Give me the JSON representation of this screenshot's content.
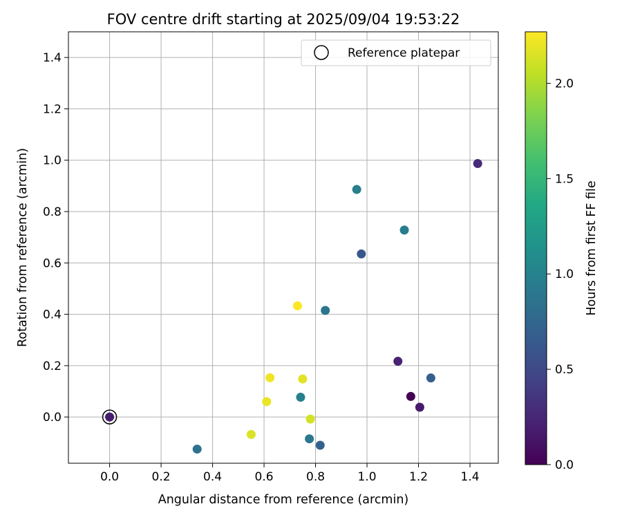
{
  "chart_data": {
    "type": "scatter",
    "title": "FOV centre drift starting at 2025/09/04 19:53:22",
    "xlabel": "Angular distance from reference (arcmin)",
    "ylabel": "Rotation from reference (arcmin)",
    "xlim": [
      -0.16,
      1.51
    ],
    "ylim": [
      -0.18,
      1.5
    ],
    "xticks": [
      0.0,
      0.2,
      0.4,
      0.6,
      0.8,
      1.0,
      1.2,
      1.4
    ],
    "xtick_labels": [
      "0.0",
      "0.2",
      "0.4",
      "0.6",
      "0.8",
      "1.0",
      "1.2",
      "1.4"
    ],
    "yticks": [
      0.0,
      0.2,
      0.4,
      0.6,
      0.8,
      1.0,
      1.2,
      1.4
    ],
    "ytick_labels": [
      "0.0",
      "0.2",
      "0.4",
      "0.6",
      "0.8",
      "1.0",
      "1.2",
      "1.4"
    ],
    "grid": true,
    "legend": {
      "position": "top-right",
      "entries": [
        {
          "label": "Reference platepar",
          "marker": "open-circle"
        }
      ]
    },
    "colorbar": {
      "label": "Hours from first FF file",
      "colormap": "viridis",
      "range": [
        0.0,
        2.27
      ],
      "ticks": [
        0.0,
        0.5,
        1.0,
        1.5,
        2.0
      ],
      "tick_labels": [
        "0.0",
        "0.5",
        "1.0",
        "1.5",
        "2.0"
      ]
    },
    "reference_point": {
      "x": 0.0,
      "y": 0.0
    },
    "points": [
      {
        "x": 0.0,
        "y": 0.0,
        "hours": 0.18
      },
      {
        "x": 1.17,
        "y": 0.08,
        "hours": 0.0
      },
      {
        "x": 1.205,
        "y": 0.038,
        "hours": 0.16
      },
      {
        "x": 1.12,
        "y": 0.217,
        "hours": 0.22
      },
      {
        "x": 1.43,
        "y": 0.987,
        "hours": 0.27
      },
      {
        "x": 0.978,
        "y": 0.635,
        "hours": 0.62
      },
      {
        "x": 1.248,
        "y": 0.152,
        "hours": 0.68
      },
      {
        "x": 0.818,
        "y": -0.11,
        "hours": 0.7
      },
      {
        "x": 0.838,
        "y": 0.415,
        "hours": 0.88
      },
      {
        "x": 0.34,
        "y": -0.125,
        "hours": 0.85
      },
      {
        "x": 0.776,
        "y": -0.085,
        "hours": 0.9
      },
      {
        "x": 0.96,
        "y": 0.886,
        "hours": 0.97
      },
      {
        "x": 1.145,
        "y": 0.728,
        "hours": 0.95
      },
      {
        "x": 0.742,
        "y": 0.077,
        "hours": 0.98
      },
      {
        "x": 0.55,
        "y": -0.068,
        "hours": 2.15
      },
      {
        "x": 0.78,
        "y": -0.008,
        "hours": 2.12
      },
      {
        "x": 0.61,
        "y": 0.06,
        "hours": 2.2
      },
      {
        "x": 0.623,
        "y": 0.153,
        "hours": 2.22
      },
      {
        "x": 0.75,
        "y": 0.148,
        "hours": 2.17
      },
      {
        "x": 0.73,
        "y": 0.433,
        "hours": 2.26
      }
    ]
  }
}
